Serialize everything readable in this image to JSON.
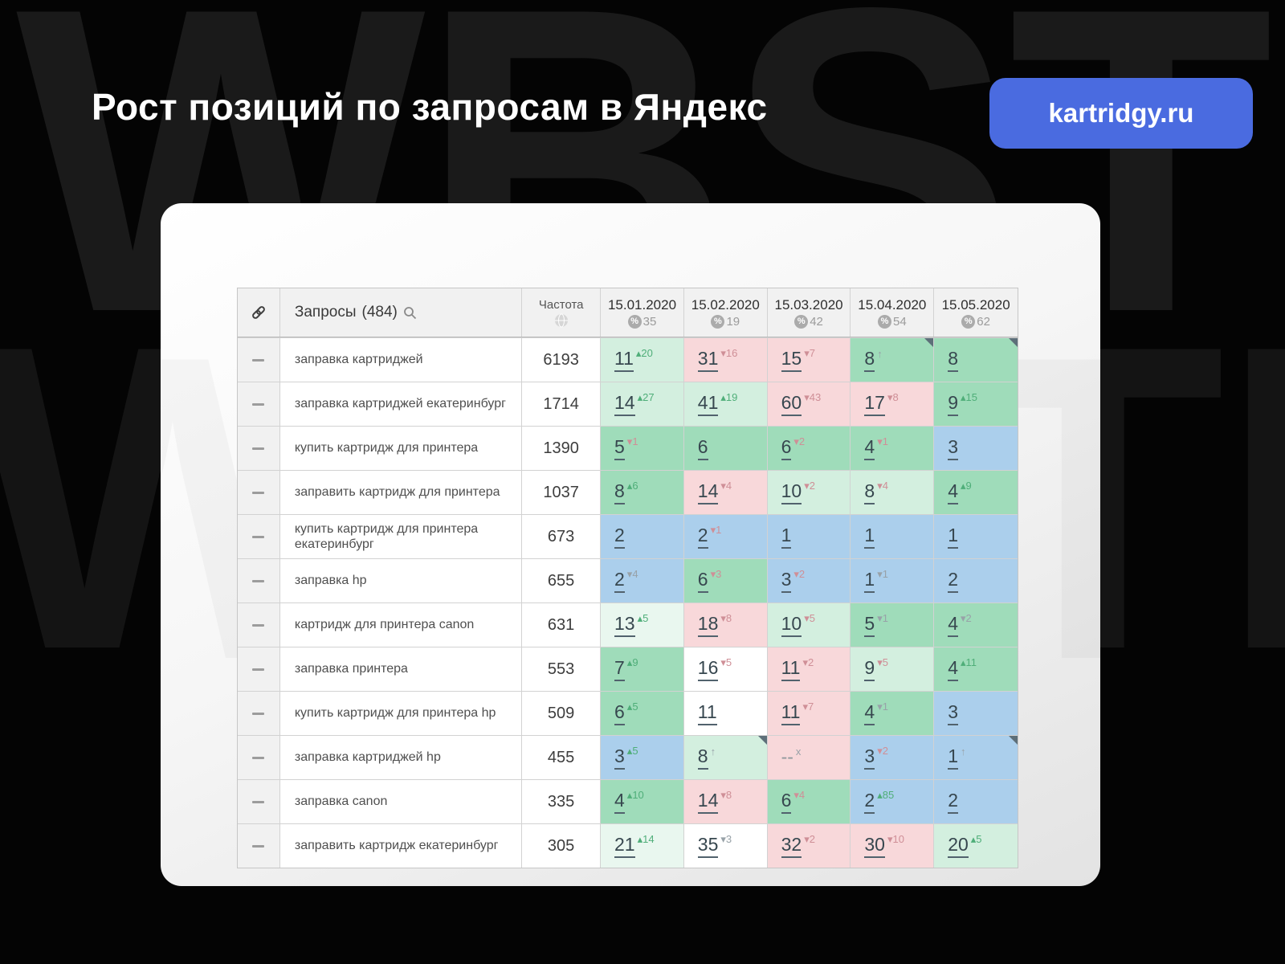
{
  "watermark": {
    "text": "WBSTR"
  },
  "header": {
    "title": "Рост позиций по запросам в Яндекс",
    "badge": "kartridgy.ru"
  },
  "colors": {
    "badge_bg": "#4a6be0",
    "cell_green_dark": "#9fdcba",
    "cell_green": "#d3efdf",
    "cell_green_pale": "#e9f7ef",
    "cell_pink": "#f8d8da",
    "cell_blue": "#abcfec",
    "sup_green": "#4fae79",
    "sup_red": "#cf8f97",
    "sup_gray": "#98a2a8"
  },
  "table": {
    "queries_label": "Запросы",
    "queries_count": "(484)",
    "frequency_label": "Частота",
    "dates": [
      {
        "date": "15.01.2020",
        "percent": "35"
      },
      {
        "date": "15.02.2020",
        "percent": "19"
      },
      {
        "date": "15.03.2020",
        "percent": "42"
      },
      {
        "date": "15.04.2020",
        "percent": "54"
      },
      {
        "date": "15.05.2020",
        "percent": "62"
      }
    ],
    "rows": [
      {
        "query": "заправка картриджей",
        "frequency": "6193",
        "cells": [
          {
            "v": "11",
            "s": "20",
            "d": "up",
            "sc": "green",
            "bg": "g2"
          },
          {
            "v": "31",
            "s": "16",
            "d": "down",
            "sc": "red",
            "bg": "pink"
          },
          {
            "v": "15",
            "s": "7",
            "d": "down",
            "sc": "red",
            "bg": "pink"
          },
          {
            "v": "8",
            "s": "",
            "d": "enter",
            "sc": "gray",
            "bg": "g3",
            "corner": true
          },
          {
            "v": "8",
            "bg": "g3",
            "corner": true
          }
        ]
      },
      {
        "query": "заправка картриджей екатеринбург",
        "frequency": "1714",
        "cells": [
          {
            "v": "14",
            "s": "27",
            "d": "up",
            "sc": "green",
            "bg": "g2"
          },
          {
            "v": "41",
            "s": "19",
            "d": "up",
            "sc": "green",
            "bg": "g2"
          },
          {
            "v": "60",
            "s": "43",
            "d": "down",
            "sc": "red",
            "bg": "pink"
          },
          {
            "v": "17",
            "s": "8",
            "d": "down",
            "sc": "red",
            "bg": "pink"
          },
          {
            "v": "9",
            "s": "15",
            "d": "up",
            "sc": "green",
            "bg": "g3"
          }
        ]
      },
      {
        "query": "купить картридж для принтера",
        "frequency": "1390",
        "cells": [
          {
            "v": "5",
            "s": "1",
            "d": "down",
            "sc": "red",
            "bg": "g3"
          },
          {
            "v": "6",
            "bg": "g3"
          },
          {
            "v": "6",
            "s": "2",
            "d": "down",
            "sc": "red",
            "bg": "g3"
          },
          {
            "v": "4",
            "s": "1",
            "d": "down",
            "sc": "red",
            "bg": "g3"
          },
          {
            "v": "3",
            "bg": "blue"
          }
        ]
      },
      {
        "query": "заправить картридж для принтера",
        "frequency": "1037",
        "cells": [
          {
            "v": "8",
            "s": "6",
            "d": "up",
            "sc": "green",
            "bg": "g3"
          },
          {
            "v": "14",
            "s": "4",
            "d": "down",
            "sc": "red",
            "bg": "pink"
          },
          {
            "v": "10",
            "s": "2",
            "d": "down",
            "sc": "red",
            "bg": "g2"
          },
          {
            "v": "8",
            "s": "4",
            "d": "down",
            "sc": "red",
            "bg": "g2"
          },
          {
            "v": "4",
            "s": "9",
            "d": "up",
            "sc": "green",
            "bg": "g3"
          }
        ]
      },
      {
        "query": "купить картридж для принтера екатеринбург",
        "frequency": "673",
        "cells": [
          {
            "v": "2",
            "bg": "blue"
          },
          {
            "v": "2",
            "s": "1",
            "d": "down",
            "sc": "red",
            "bg": "blue"
          },
          {
            "v": "1",
            "bg": "blue"
          },
          {
            "v": "1",
            "bg": "blue"
          },
          {
            "v": "1",
            "bg": "blue"
          }
        ]
      },
      {
        "query": "заправка hp",
        "frequency": "655",
        "cells": [
          {
            "v": "2",
            "s": "4",
            "d": "down",
            "sc": "gray",
            "bg": "blue"
          },
          {
            "v": "6",
            "s": "3",
            "d": "down",
            "sc": "red",
            "bg": "g3"
          },
          {
            "v": "3",
            "s": "2",
            "d": "down",
            "sc": "red",
            "bg": "blue"
          },
          {
            "v": "1",
            "s": "1",
            "d": "down",
            "sc": "gray",
            "bg": "blue"
          },
          {
            "v": "2",
            "bg": "blue"
          }
        ]
      },
      {
        "query": "картридж для принтера canon",
        "frequency": "631",
        "cells": [
          {
            "v": "13",
            "s": "5",
            "d": "up",
            "sc": "green",
            "bg": "g1"
          },
          {
            "v": "18",
            "s": "8",
            "d": "down",
            "sc": "red",
            "bg": "pink"
          },
          {
            "v": "10",
            "s": "5",
            "d": "down",
            "sc": "red",
            "bg": "g2"
          },
          {
            "v": "5",
            "s": "1",
            "d": "down",
            "sc": "gray",
            "bg": "g3"
          },
          {
            "v": "4",
            "s": "2",
            "d": "down",
            "sc": "gray",
            "bg": "g3"
          }
        ]
      },
      {
        "query": "заправка принтера",
        "frequency": "553",
        "cells": [
          {
            "v": "7",
            "s": "9",
            "d": "up",
            "sc": "green",
            "bg": "g3"
          },
          {
            "v": "16",
            "s": "5",
            "d": "down",
            "sc": "red",
            "bg": "white"
          },
          {
            "v": "11",
            "s": "2",
            "d": "down",
            "sc": "red",
            "bg": "pink"
          },
          {
            "v": "9",
            "s": "5",
            "d": "down",
            "sc": "red",
            "bg": "g2"
          },
          {
            "v": "4",
            "s": "11",
            "d": "up",
            "sc": "green",
            "bg": "g3"
          }
        ]
      },
      {
        "query": "купить картридж для принтера hp",
        "frequency": "509",
        "cells": [
          {
            "v": "6",
            "s": "5",
            "d": "up",
            "sc": "green",
            "bg": "g3"
          },
          {
            "v": "11",
            "bg": "white"
          },
          {
            "v": "11",
            "s": "7",
            "d": "down",
            "sc": "red",
            "bg": "pink"
          },
          {
            "v": "4",
            "s": "1",
            "d": "down",
            "sc": "gray",
            "bg": "g3"
          },
          {
            "v": "3",
            "bg": "blue"
          }
        ]
      },
      {
        "query": "заправка картриджей hp",
        "frequency": "455",
        "cells": [
          {
            "v": "3",
            "s": "5",
            "d": "up",
            "sc": "green",
            "bg": "blue"
          },
          {
            "v": "8",
            "s": "",
            "d": "enter",
            "sc": "gray",
            "bg": "g2",
            "corner": true
          },
          {
            "v": "--",
            "s": "x",
            "d": "none",
            "sc": "gray",
            "bg": "pink",
            "plain": true
          },
          {
            "v": "3",
            "s": "2",
            "d": "down",
            "sc": "red",
            "bg": "blue"
          },
          {
            "v": "1",
            "s": "",
            "d": "enter",
            "sc": "gray",
            "bg": "blue",
            "corner": true
          }
        ]
      },
      {
        "query": "заправка canon",
        "frequency": "335",
        "cells": [
          {
            "v": "4",
            "s": "10",
            "d": "up",
            "sc": "green",
            "bg": "g3"
          },
          {
            "v": "14",
            "s": "8",
            "d": "down",
            "sc": "red",
            "bg": "pink"
          },
          {
            "v": "6",
            "s": "4",
            "d": "down",
            "sc": "red",
            "bg": "g3"
          },
          {
            "v": "2",
            "s": "85",
            "d": "up",
            "sc": "green",
            "bg": "blue"
          },
          {
            "v": "2",
            "bg": "blue"
          }
        ]
      },
      {
        "query": "заправить картридж екатеринбург",
        "frequency": "305",
        "cells": [
          {
            "v": "21",
            "s": "14",
            "d": "up",
            "sc": "green",
            "bg": "g1"
          },
          {
            "v": "35",
            "s": "3",
            "d": "down",
            "sc": "gray",
            "bg": "white"
          },
          {
            "v": "32",
            "s": "2",
            "d": "down",
            "sc": "red",
            "bg": "pink"
          },
          {
            "v": "30",
            "s": "10",
            "d": "down",
            "sc": "red",
            "bg": "pink"
          },
          {
            "v": "20",
            "s": "5",
            "d": "up",
            "sc": "green",
            "bg": "g2"
          }
        ]
      }
    ]
  }
}
